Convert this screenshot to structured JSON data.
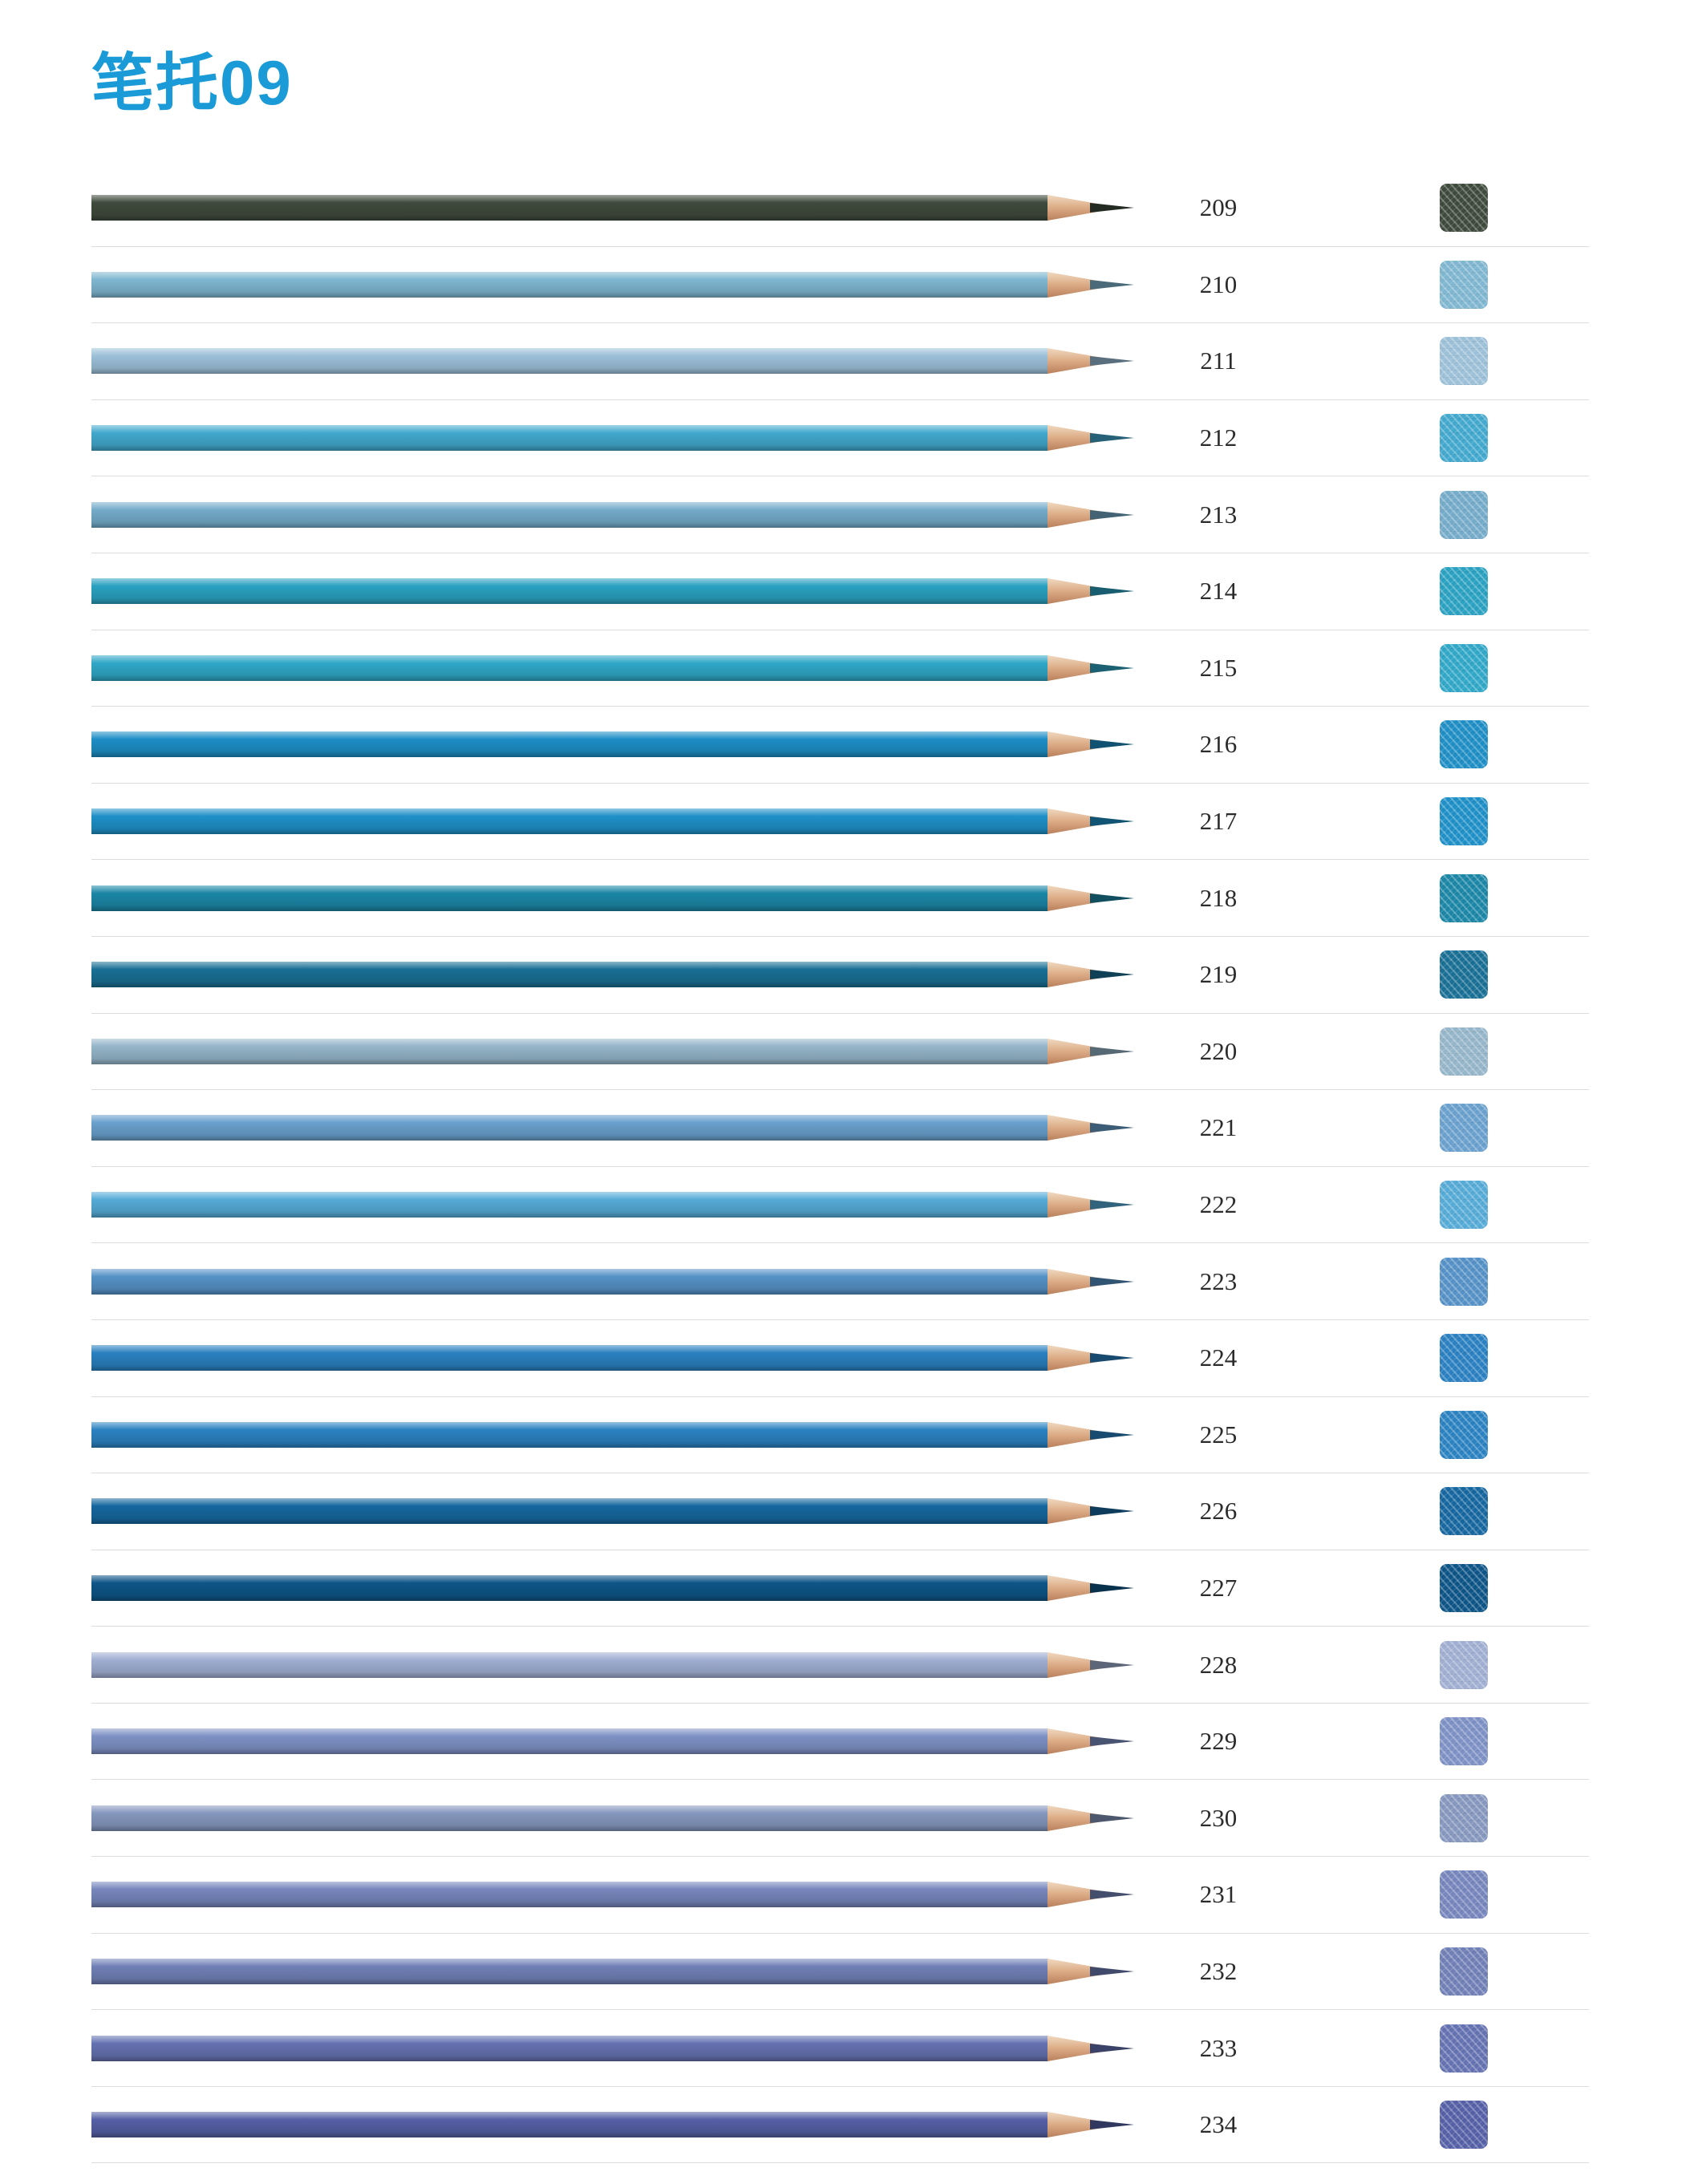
{
  "header": {
    "title": "笔托09",
    "title_color": "#1a9bd7"
  },
  "style": {
    "wood_light": "#f0d9c0",
    "wood_mid": "#dcab85",
    "wood_dark": "#b9805c",
    "separator": "#dcdcdc",
    "number_color": "#2b2b2b"
  },
  "pencils": [
    {
      "number": "209",
      "color": "#3e4a3c"
    },
    {
      "number": "210",
      "color": "#7fb6d0"
    },
    {
      "number": "211",
      "color": "#9cc0d8"
    },
    {
      "number": "212",
      "color": "#42a8cd"
    },
    {
      "number": "213",
      "color": "#74abc9"
    },
    {
      "number": "214",
      "color": "#2aa1c1"
    },
    {
      "number": "215",
      "color": "#30a7c7"
    },
    {
      "number": "216",
      "color": "#1e8ec5"
    },
    {
      "number": "217",
      "color": "#1f90c7"
    },
    {
      "number": "218",
      "color": "#1b86a6"
    },
    {
      "number": "219",
      "color": "#196f94"
    },
    {
      "number": "220",
      "color": "#95b5c9"
    },
    {
      "number": "221",
      "color": "#69a0cd"
    },
    {
      "number": "222",
      "color": "#55aad6"
    },
    {
      "number": "223",
      "color": "#5591c6"
    },
    {
      "number": "224",
      "color": "#2a80c0"
    },
    {
      "number": "225",
      "color": "#2b82c1"
    },
    {
      "number": "226",
      "color": "#16679f"
    },
    {
      "number": "227",
      "color": "#0e5587"
    },
    {
      "number": "228",
      "color": "#a0aed1"
    },
    {
      "number": "229",
      "color": "#7e91c5"
    },
    {
      "number": "230",
      "color": "#8597be"
    },
    {
      "number": "231",
      "color": "#7686bc"
    },
    {
      "number": "232",
      "color": "#7080b6"
    },
    {
      "number": "233",
      "color": "#6572b1"
    },
    {
      "number": "234",
      "color": "#5560a6"
    }
  ]
}
